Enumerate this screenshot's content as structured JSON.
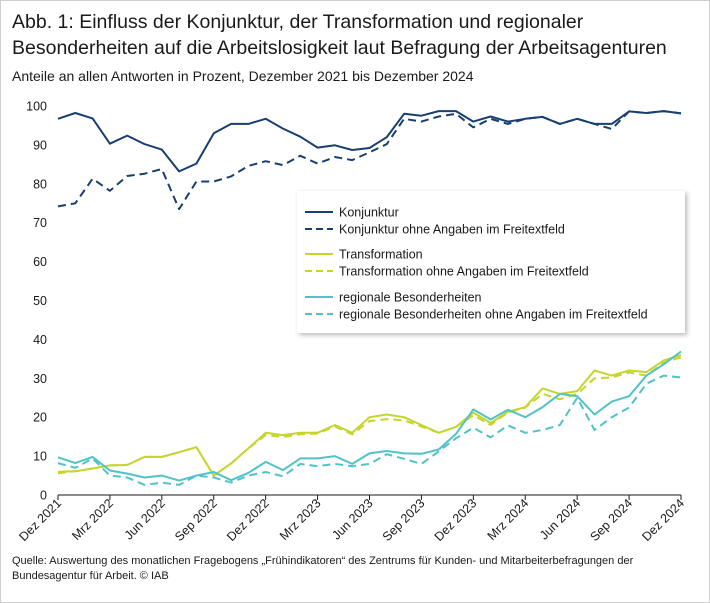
{
  "figure": {
    "title": "Abb. 1: Einfluss der Konjunktur, der Transformation und regionaler Besonderheiten auf die Arbeitslosigkeit laut Befragung der Arbeitsagenturen",
    "subtitle": "Anteile an allen Antworten in Prozent, Dezember 2021 bis Dezember 2024",
    "source": "Quelle: Auswertung des monatlichen Fragebogens „Frühindikatoren“ des Zentrums für Kunden- und Mitarbeiterbefragungen der Bundesagentur für Arbeit. © IAB"
  },
  "chart_data": {
    "type": "line",
    "title": "Abb. 1: Einfluss der Konjunktur, der Transformation und regionaler Besonderheiten auf die Arbeitslosigkeit laut Befragung der Arbeitsagenturen",
    "subtitle": "Anteile an allen Antworten in Prozent, Dezember 2021 bis Dezember 2024",
    "xlabel": "",
    "ylabel": "",
    "ylim": [
      0,
      100
    ],
    "yticks": [
      0,
      10,
      20,
      30,
      40,
      50,
      60,
      70,
      80,
      90,
      100
    ],
    "grid": false,
    "legend_position": "right",
    "x": [
      "Dez 2021",
      "Jan 2022",
      "Feb 2022",
      "Mrz 2022",
      "Apr 2022",
      "Mai 2022",
      "Jun 2022",
      "Jul 2022",
      "Aug 2022",
      "Sep 2022",
      "Okt 2022",
      "Nov 2022",
      "Dez 2022",
      "Jan 2023",
      "Feb 2023",
      "Mrz 2023",
      "Apr 2023",
      "Mai 2023",
      "Jun 2023",
      "Jul 2023",
      "Aug 2023",
      "Sep 2023",
      "Okt 2023",
      "Nov 2023",
      "Dez 2023",
      "Jan 2024",
      "Feb 2024",
      "Mrz 2024",
      "Apr 2024",
      "Mai 2024",
      "Jun 2024",
      "Jul 2024",
      "Aug 2024",
      "Sep 2024",
      "Okt 2024",
      "Nov 2024",
      "Dez 2024"
    ],
    "xtick_labels": [
      {
        "index": 0,
        "label": "Dez 2021"
      },
      {
        "index": 3,
        "label": "Mrz 2022"
      },
      {
        "index": 6,
        "label": "Jun 2022"
      },
      {
        "index": 9,
        "label": "Sep 2022"
      },
      {
        "index": 12,
        "label": "Dez 2022"
      },
      {
        "index": 15,
        "label": "Mrz 2023"
      },
      {
        "index": 18,
        "label": "Jun 2023"
      },
      {
        "index": 21,
        "label": "Sep 2023"
      },
      {
        "index": 24,
        "label": "Dez 2023"
      },
      {
        "index": 27,
        "label": "Mrz 2024"
      },
      {
        "index": 30,
        "label": "Jun 2024"
      },
      {
        "index": 33,
        "label": "Sep 2024"
      },
      {
        "index": 36,
        "label": "Dez 2024"
      }
    ],
    "series": [
      {
        "name": "Konjunktur",
        "color": "#173f6f",
        "style": "solid",
        "values": [
          96.7,
          98.2,
          96.8,
          90.3,
          92.4,
          90.2,
          88.8,
          83.2,
          85.2,
          93.0,
          95.4,
          95.4,
          96.7,
          94.2,
          92.1,
          89.3,
          89.9,
          88.7,
          89.2,
          92.0,
          98.0,
          97.5,
          98.7,
          98.7,
          96.0,
          97.3,
          96.0,
          96.7,
          97.2,
          95.4,
          96.7,
          95.4,
          95.4,
          98.6,
          98.2,
          98.7,
          98.1
        ]
      },
      {
        "name": "Konjunktur ohne Angaben im Freitextfeld",
        "color": "#173f6f",
        "style": "dashed",
        "values": [
          74.2,
          75.0,
          81.3,
          78.2,
          82.0,
          82.6,
          83.8,
          73.5,
          80.6,
          80.6,
          81.9,
          84.6,
          85.8,
          84.8,
          87.2,
          85.2,
          86.9,
          86.1,
          88.1,
          90.2,
          96.7,
          96.0,
          97.3,
          98.0,
          94.5,
          96.7,
          95.4,
          96.7,
          97.2,
          95.4,
          96.7,
          95.4,
          94.1,
          98.6,
          98.2,
          98.7,
          98.1
        ]
      },
      {
        "name": "Transformation",
        "color": "#c5d52c",
        "style": "solid",
        "values": [
          6.0,
          6.1,
          6.8,
          7.6,
          7.7,
          9.8,
          9.8,
          11.0,
          12.3,
          5.0,
          8.1,
          12.0,
          16.0,
          15.4,
          16.0,
          16.0,
          18.0,
          16.0,
          20.0,
          20.7,
          20.0,
          18.0,
          16.0,
          17.5,
          21.2,
          18.5,
          21.4,
          22.6,
          27.4,
          26.0,
          26.7,
          32.0,
          30.7,
          32.0,
          31.6,
          34.6,
          36.0
        ]
      },
      {
        "name": "Transformation ohne Angaben im Freitextfeld",
        "color": "#c5d52c",
        "style": "dashed",
        "values": [
          5.6,
          6.1,
          6.8,
          7.6,
          7.7,
          9.8,
          9.8,
          11.0,
          12.3,
          5.0,
          8.1,
          12.0,
          15.4,
          14.9,
          15.6,
          15.8,
          17.6,
          15.6,
          19.0,
          19.5,
          19.2,
          17.6,
          16.0,
          17.5,
          20.5,
          18.0,
          21.2,
          22.5,
          26.0,
          24.6,
          26.0,
          30.0,
          30.2,
          31.5,
          30.7,
          34.0,
          35.4
        ]
      },
      {
        "name": "regionale Besonderheiten",
        "color": "#4fc3c8",
        "style": "solid",
        "values": [
          9.7,
          8.2,
          9.8,
          6.3,
          5.5,
          4.5,
          5.0,
          3.7,
          5.0,
          5.9,
          3.8,
          5.7,
          8.5,
          6.4,
          9.4,
          9.4,
          10.0,
          8.0,
          10.7,
          11.3,
          10.7,
          10.6,
          11.7,
          15.7,
          22.0,
          19.4,
          21.9,
          20.0,
          22.6,
          26.0,
          25.4,
          20.7,
          24.0,
          25.4,
          30.7,
          33.6,
          36.9
        ]
      },
      {
        "name": "regionale Besonderheiten ohne Angaben im Freitextfeld",
        "color": "#4fc3c8",
        "style": "dashed",
        "values": [
          8.2,
          7.0,
          9.4,
          5.0,
          4.5,
          2.6,
          3.2,
          2.6,
          5.0,
          4.5,
          3.2,
          5.0,
          5.9,
          4.8,
          8.0,
          7.4,
          8.0,
          7.4,
          8.0,
          10.5,
          9.3,
          8.0,
          11.2,
          14.6,
          17.3,
          14.8,
          17.9,
          16.0,
          16.7,
          18.0,
          25.0,
          16.7,
          20.0,
          22.5,
          28.6,
          30.7,
          30.2
        ]
      }
    ]
  }
}
